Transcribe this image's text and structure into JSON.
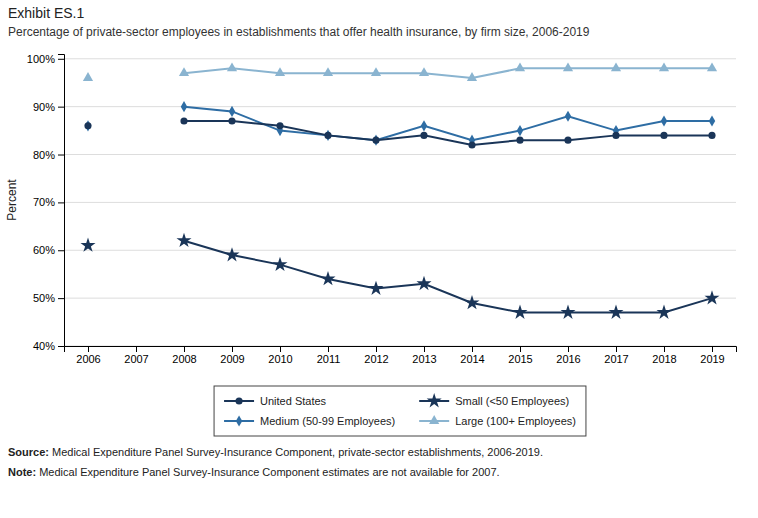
{
  "chart_data": {
    "type": "line",
    "title": "Exhibit ES.1",
    "subtitle": "Percentage of private-sector employees in establishments that offer health insurance, by firm size, 2006-2019",
    "x": [
      2006,
      2007,
      2008,
      2009,
      2010,
      2011,
      2012,
      2013,
      2014,
      2015,
      2016,
      2017,
      2018,
      2019
    ],
    "series": [
      {
        "name": "United States",
        "color": "#1a3558",
        "marker": "circle",
        "values": [
          86,
          null,
          87,
          87,
          86,
          84,
          83,
          84,
          82,
          83,
          83,
          84,
          84,
          84
        ]
      },
      {
        "name": "Small (<50 Employees)",
        "color": "#1a3558",
        "marker": "star",
        "values": [
          61,
          null,
          62,
          59,
          57,
          54,
          52,
          53,
          49,
          47,
          47,
          47,
          47,
          50
        ]
      },
      {
        "name": "Medium (50-99 Employees)",
        "color": "#2e6da4",
        "marker": "diamond",
        "values": [
          86,
          null,
          90,
          89,
          85,
          84,
          83,
          86,
          83,
          85,
          88,
          85,
          87,
          87
        ]
      },
      {
        "name": "Large (100+ Employees)",
        "color": "#8ab4d0",
        "marker": "triangle",
        "values": [
          96,
          null,
          97,
          98,
          97,
          97,
          97,
          97,
          96,
          98,
          98,
          98,
          98,
          98
        ]
      }
    ],
    "xlim": [
      2005.5,
      2019.5
    ],
    "xticks": [
      2006,
      2007,
      2008,
      2009,
      2010,
      2011,
      2012,
      2013,
      2014,
      2015,
      2016,
      2017,
      2018,
      2019
    ],
    "ylim": [
      40,
      101
    ],
    "yticks": [
      {
        "value": 40,
        "label": "40%"
      },
      {
        "value": 50,
        "label": "50%"
      },
      {
        "value": 60,
        "label": "60%"
      },
      {
        "value": 70,
        "label": "70%"
      },
      {
        "value": 80,
        "label": "80%"
      },
      {
        "value": 90,
        "label": "90%"
      },
      {
        "value": 100,
        "label": "100%"
      }
    ],
    "ylabel": "Percent",
    "grid": true,
    "legend": "bottom",
    "annotations": [
      {
        "label": "Source:",
        "text": " Medical Expenditure Panel Survey-Insurance Component, private-sector establishments, 2006-2019."
      },
      {
        "label": "Note:",
        "text": " Medical Expenditure Panel Survey-Insurance Component estimates are not available for 2007."
      }
    ]
  }
}
